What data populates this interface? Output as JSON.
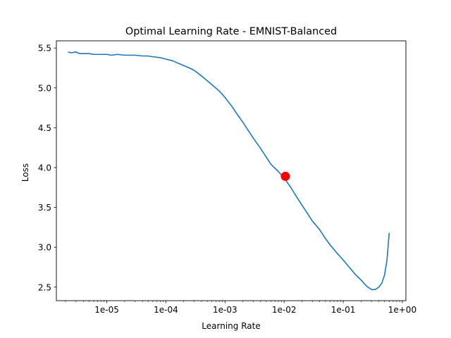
{
  "chart_data": {
    "type": "line",
    "title": "Optimal Learning Rate - EMNIST-Balanced",
    "xlabel": "Learning Rate",
    "ylabel": "Loss",
    "xscale": "log",
    "xlim": [
      1.4e-06,
      1.15
    ],
    "ylim": [
      2.33,
      5.59
    ],
    "grid": false,
    "x_ticks": [
      {
        "value": 1e-05,
        "label": "1e-05"
      },
      {
        "value": 0.0001,
        "label": "1e-04"
      },
      {
        "value": 0.001,
        "label": "1e-03"
      },
      {
        "value": 0.01,
        "label": "1e-02"
      },
      {
        "value": 0.1,
        "label": "1e-01"
      },
      {
        "value": 1,
        "label": "1e+00"
      }
    ],
    "y_ticks": [
      {
        "value": 2.5,
        "label": "2.5"
      },
      {
        "value": 3.0,
        "label": "3.0"
      },
      {
        "value": 3.5,
        "label": "3.5"
      },
      {
        "value": 4.0,
        "label": "4.0"
      },
      {
        "value": 4.5,
        "label": "4.5"
      },
      {
        "value": 5.0,
        "label": "5.0"
      },
      {
        "value": 5.5,
        "label": "5.5"
      }
    ],
    "series": [
      {
        "color": "#1f77b4",
        "x": [
          2.2e-06,
          2.5e-06,
          3e-06,
          3.5e-06,
          4e-06,
          5e-06,
          6e-06,
          8e-06,
          1e-05,
          1.2e-05,
          1.5e-05,
          2e-05,
          2.5e-05,
          3e-05,
          4e-05,
          5e-05,
          6e-05,
          8e-05,
          0.0001,
          0.00013,
          0.00016,
          0.0002,
          0.00025,
          0.0003,
          0.0004,
          0.0005,
          0.0006,
          0.0008,
          0.001,
          0.0013,
          0.0016,
          0.002,
          0.0025,
          0.003,
          0.004,
          0.005,
          0.006,
          0.008,
          0.01,
          0.013,
          0.016,
          0.02,
          0.025,
          0.03,
          0.04,
          0.05,
          0.06,
          0.08,
          0.1,
          0.13,
          0.16,
          0.2,
          0.25,
          0.3,
          0.35,
          0.4,
          0.45,
          0.5,
          0.55,
          0.6
        ],
        "y": [
          5.45,
          5.44,
          5.45,
          5.43,
          5.43,
          5.43,
          5.42,
          5.42,
          5.42,
          5.41,
          5.42,
          5.41,
          5.41,
          5.41,
          5.4,
          5.4,
          5.39,
          5.38,
          5.36,
          5.34,
          5.31,
          5.28,
          5.25,
          5.22,
          5.15,
          5.09,
          5.04,
          4.96,
          4.88,
          4.77,
          4.67,
          4.57,
          4.46,
          4.37,
          4.24,
          4.13,
          4.04,
          3.95,
          3.87,
          3.75,
          3.64,
          3.53,
          3.42,
          3.33,
          3.22,
          3.11,
          3.03,
          2.92,
          2.84,
          2.74,
          2.66,
          2.59,
          2.51,
          2.47,
          2.47,
          2.5,
          2.55,
          2.65,
          2.84,
          3.18
        ]
      }
    ],
    "marker": {
      "x": 0.0105,
      "y": 3.89,
      "color": "#ff0000"
    }
  }
}
